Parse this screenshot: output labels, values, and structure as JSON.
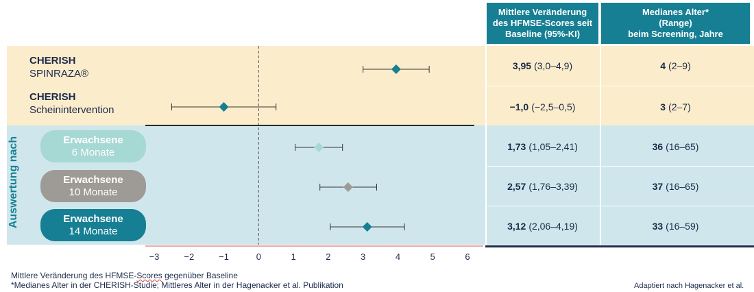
{
  "headers": {
    "col1": [
      "Mittlere Veränderung",
      "des HFMSE-Scores seit",
      "Baseline (95%-KI)"
    ],
    "col2": [
      "Medianes Alter*",
      "(Range)",
      "beim Screening, Jahre"
    ]
  },
  "side_label": "Auswertung nach",
  "rows": [
    {
      "title": "CHERISH",
      "subtitle": "SPINRAZA®",
      "kind": "study",
      "mean_bold": "3,95",
      "ci_text": "(3,0–4,9)",
      "age_bold": "4",
      "age_range": "(2–9)"
    },
    {
      "title": "CHERISH",
      "subtitle": "Scheinintervention",
      "kind": "study",
      "mean_bold": "−1,0",
      "ci_text": "(−2,5–0,5)",
      "age_bold": "3",
      "age_range": "(2–7)"
    },
    {
      "title": "Erwachsene",
      "subtitle": "6 Monate",
      "kind": "pill",
      "pill_color": "#a6d8d4",
      "mean_bold": "1,73",
      "ci_text": "(1,05–2,41)",
      "age_bold": "36",
      "age_range": "(16–65)"
    },
    {
      "title": "Erwachsene",
      "subtitle": "10 Monate",
      "kind": "pill",
      "pill_color": "#9e9a96",
      "mean_bold": "2,57",
      "ci_text": "(1,76–3,39)",
      "age_bold": "37",
      "age_range": "(16–65)"
    },
    {
      "title": "Erwachsene",
      "subtitle": "14 Monate",
      "kind": "pill",
      "pill_color": "#167f94",
      "mean_bold": "3,12",
      "ci_text": "(2,06–4,19)",
      "age_bold": "33",
      "age_range": "(16–59)"
    }
  ],
  "footnotes": {
    "line1_pre": "Mittlere Veränderung des HFMSE-",
    "line1_squig": "Scores",
    "line1_post": " gegenüber Baseline",
    "line2": "*Medianes Alter in der CHERISH-Studie; Mittleres Alter in der Hagenacker et al. Publikation",
    "credit": "Adaptiert nach Hagenacker et al."
  },
  "chart_data": {
    "type": "forest",
    "xlim": [
      -3,
      6
    ],
    "xticks": [
      -3,
      -2,
      -1,
      0,
      1,
      2,
      3,
      4,
      5,
      6
    ],
    "xtick_labels": [
      "−3",
      "−2",
      "−1",
      "0",
      "1",
      "2",
      "3",
      "4",
      "5",
      "6"
    ],
    "reference_line": 0,
    "series": [
      {
        "estimate": 3.95,
        "lower": 3.0,
        "upper": 4.9,
        "color": "#167f94"
      },
      {
        "estimate": -1.0,
        "lower": -2.5,
        "upper": 0.5,
        "color": "#167f94"
      },
      {
        "estimate": 1.73,
        "lower": 1.05,
        "upper": 2.41,
        "color": "#a6d8d4"
      },
      {
        "estimate": 2.57,
        "lower": 1.76,
        "upper": 3.39,
        "color": "#9e9a96"
      },
      {
        "estimate": 3.12,
        "lower": 2.06,
        "upper": 4.19,
        "color": "#167f94"
      }
    ]
  }
}
